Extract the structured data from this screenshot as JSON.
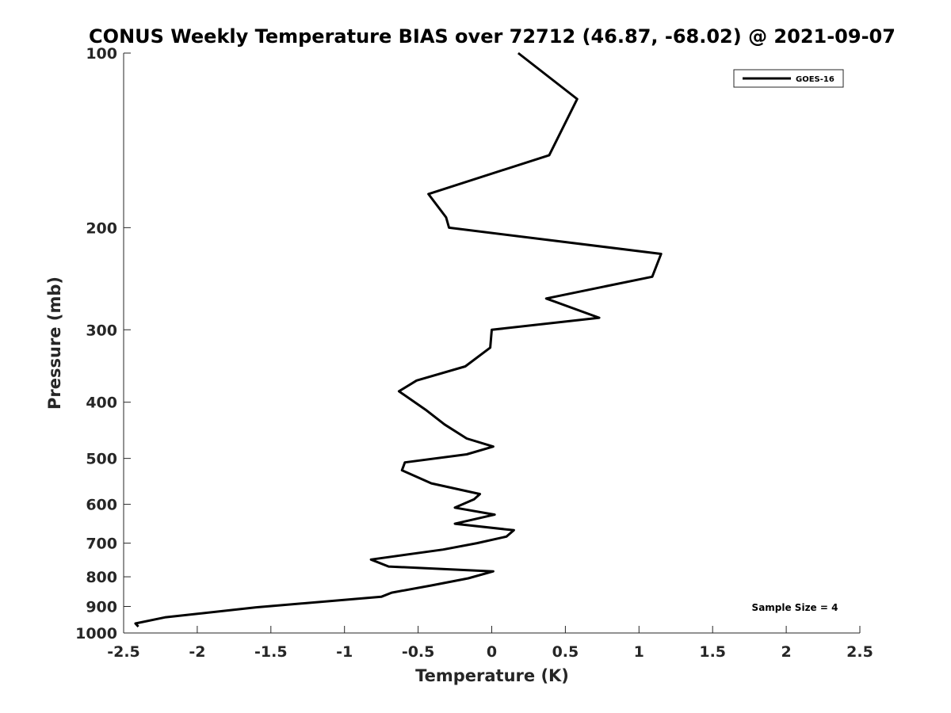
{
  "chart_data": {
    "type": "line",
    "title": "CONUS Weekly Temperature BIAS over 72712 (46.87, -68.02) @ 2021-09-07",
    "xlabel": "Temperature (K)",
    "ylabel": "Pressure (mb)",
    "xlim": [
      -2.5,
      2.5
    ],
    "ylim": [
      100,
      1000
    ],
    "y_scale": "log",
    "y_reversed": true,
    "grid": false,
    "legend_position": "top-right",
    "x_ticks": [
      -2.5,
      -2,
      -1.5,
      -1,
      -0.5,
      0,
      0.5,
      1,
      1.5,
      2,
      2.5
    ],
    "x_tick_labels": [
      "-2.5",
      "-2",
      "-1.5",
      "-1",
      "-0.5",
      "0",
      "0.5",
      "1",
      "1.5",
      "2",
      "2.5"
    ],
    "y_ticks": [
      100,
      200,
      300,
      400,
      500,
      600,
      700,
      800,
      900,
      1000
    ],
    "y_tick_labels": [
      "100",
      "200",
      "300",
      "400",
      "500",
      "600",
      "700",
      "800",
      "900",
      "1000"
    ],
    "series": [
      {
        "name": "GOES-16",
        "color": "#000000",
        "points": [
          [
            0.18,
            100
          ],
          [
            0.58,
            120
          ],
          [
            0.39,
            150
          ],
          [
            -0.43,
            175
          ],
          [
            -0.31,
            192
          ],
          [
            -0.29,
            200
          ],
          [
            1.15,
            222
          ],
          [
            1.09,
            243
          ],
          [
            0.37,
            265
          ],
          [
            0.73,
            286
          ],
          [
            0.0,
            300
          ],
          [
            -0.01,
            322
          ],
          [
            -0.18,
            347
          ],
          [
            -0.51,
            367
          ],
          [
            -0.63,
            383
          ],
          [
            -0.45,
            412
          ],
          [
            -0.32,
            437
          ],
          [
            -0.17,
            462
          ],
          [
            0.01,
            477
          ],
          [
            -0.17,
            492
          ],
          [
            -0.59,
            508
          ],
          [
            -0.61,
            524
          ],
          [
            -0.41,
            552
          ],
          [
            -0.08,
            576
          ],
          [
            -0.12,
            588
          ],
          [
            -0.25,
            608
          ],
          [
            0.02,
            625
          ],
          [
            -0.25,
            648
          ],
          [
            0.15,
            665
          ],
          [
            0.1,
            682
          ],
          [
            -0.1,
            700
          ],
          [
            -0.33,
            718
          ],
          [
            -0.82,
            747
          ],
          [
            -0.7,
            768
          ],
          [
            0.01,
            783
          ],
          [
            -0.16,
            805
          ],
          [
            -0.41,
            828
          ],
          [
            -0.68,
            852
          ],
          [
            -0.75,
            866
          ],
          [
            -1.6,
            903
          ],
          [
            -2.22,
            940
          ],
          [
            -2.42,
            963
          ],
          [
            -2.4,
            975
          ]
        ]
      }
    ],
    "annotations": [
      "Sample Size = 4"
    ]
  }
}
